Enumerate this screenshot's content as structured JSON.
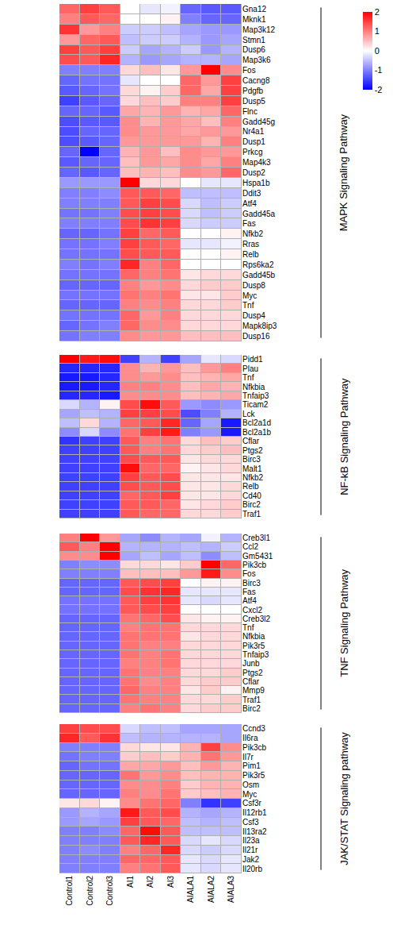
{
  "chart_data": [
    {
      "type": "heatmap",
      "title": "MAPK Signaling Pathway",
      "tick_labels": "y",
      "colorbar": {
        "range": [
          -2,
          2
        ],
        "ticks": [
          -2,
          -1,
          0,
          1,
          2
        ]
      },
      "x": [
        "Control1",
        "Control2",
        "Control3",
        "AI1",
        "AI2",
        "AI3",
        "AIALA1",
        "AIALA2",
        "AIALA3"
      ],
      "y": [
        "Gna12",
        "Mknk1",
        "Map3k12",
        "Stmn1",
        "Dusp6",
        "Map3k6",
        "Fos",
        "Cacng8",
        "Pdgfb",
        "Dusp5",
        "Flnc",
        "Gadd45g",
        "Nr4a1",
        "Dusp1",
        "Prkcg",
        "Map4k3",
        "Dusp2",
        "Hspa1b",
        "Ddit3",
        "Atf4",
        "Gadd45a",
        "Fas",
        "Nfkb2",
        "Rras",
        "Relb",
        "Rps6ka2",
        "Gadd45b",
        "Dusp8",
        "Myc",
        "Tnf",
        "Dusp4",
        "Mapk8ip3",
        "Dusp16"
      ],
      "z": [
        [
          1.2,
          1.5,
          1.3,
          0,
          -0.2,
          -0.1,
          -1.2,
          -1.3,
          -1.3
        ],
        [
          1,
          1.3,
          1.2,
          0,
          0,
          0.1,
          -1,
          -1.2,
          -1.2
        ],
        [
          1.6,
          0.8,
          1,
          -0.4,
          -0.4,
          -0.5,
          -0.7,
          -0.8,
          -0.8
        ],
        [
          0.8,
          1.2,
          1.3,
          -0.5,
          -0.4,
          -0.4,
          -0.6,
          -0.8,
          -0.7
        ],
        [
          1.5,
          1.3,
          1.5,
          -0.4,
          -0.7,
          -0.6,
          -0.4,
          -0.8,
          -0.6
        ],
        [
          1.4,
          1.3,
          1.7,
          -0.6,
          -0.8,
          -0.7,
          -0.6,
          -0.6,
          -0.7
        ],
        [
          -1,
          -1,
          -1,
          0.3,
          0.5,
          0.2,
          0.8,
          2,
          0.9
        ],
        [
          -1.2,
          -1.1,
          -1.1,
          -0.2,
          0,
          0,
          1.2,
          0.8,
          1.5
        ],
        [
          -1.3,
          -1.2,
          -1.1,
          0.3,
          0.1,
          0.4,
          1.2,
          0.7,
          1.5
        ],
        [
          -1.5,
          -1.3,
          -1.2,
          0.3,
          0.5,
          0.4,
          1,
          1,
          1.5
        ],
        [
          -1.2,
          -1.2,
          -1.3,
          0.7,
          0.6,
          0.8,
          0.6,
          0.7,
          1.2
        ],
        [
          -1.4,
          -1.3,
          -1.3,
          0.9,
          0.6,
          0.8,
          0.7,
          0.5,
          1
        ],
        [
          -1.4,
          -1.2,
          -1.2,
          0.9,
          0.8,
          0.8,
          0.7,
          0.8,
          0.8
        ],
        [
          -1.4,
          -1.3,
          -1.2,
          0.8,
          0.8,
          0.8,
          0.8,
          0.6,
          1
        ],
        [
          -1.2,
          -2,
          -1.2,
          0.6,
          0.8,
          0.5,
          0.9,
          0.8,
          0.8
        ],
        [
          -1.3,
          -1.2,
          -1.2,
          0.5,
          0.8,
          0.7,
          0.9,
          0.7,
          1
        ],
        [
          -1.2,
          -1.3,
          -1.2,
          0.5,
          0.6,
          0.5,
          0.9,
          0.8,
          1.2
        ],
        [
          -0.8,
          -0.8,
          -0.8,
          2,
          0.3,
          0.3,
          0,
          -0.2,
          -0.2
        ],
        [
          -1,
          -1,
          -0.9,
          1.3,
          1.3,
          1.2,
          -0.5,
          -0.5,
          -0.5
        ],
        [
          -1,
          -1,
          -1,
          1.3,
          1.5,
          1.4,
          -0.3,
          -0.5,
          -0.4
        ],
        [
          -1.1,
          -1.1,
          -1,
          1.4,
          1.5,
          1.4,
          -0.3,
          -0.5,
          -0.4
        ],
        [
          -1,
          -1,
          -1,
          1.4,
          1.6,
          1.5,
          -0.3,
          -0.4,
          -0.4
        ],
        [
          -1.2,
          -1.2,
          -1.1,
          1.5,
          1.2,
          1.3,
          0,
          0,
          0.1
        ],
        [
          -1.1,
          -1.1,
          -1,
          1.5,
          1.3,
          1.2,
          -0.2,
          -0.2,
          -0.1
        ],
        [
          -1.1,
          -1.1,
          -1.1,
          1.4,
          1.3,
          1.3,
          0,
          0,
          0.1
        ],
        [
          -1,
          -1.1,
          -1,
          1.7,
          1,
          1.2,
          0,
          0,
          0
        ],
        [
          -1.1,
          -1.1,
          -1.1,
          1.2,
          1,
          1.1,
          0.2,
          0.3,
          0.3
        ],
        [
          -1.2,
          -1.2,
          -1.2,
          1,
          0.8,
          0.9,
          0.3,
          0.4,
          0.4
        ],
        [
          -1.1,
          -1.1,
          -1.1,
          1.1,
          1,
          1.1,
          0.2,
          0.2,
          0.4
        ],
        [
          -1.2,
          -1.2,
          -1.2,
          1,
          0.9,
          1,
          0.3,
          0.3,
          0.4
        ],
        [
          -1.1,
          -1.1,
          -1.1,
          1.2,
          0.8,
          1,
          0.3,
          0.3,
          0.3
        ],
        [
          -1.2,
          -1.1,
          -1,
          1.2,
          0.9,
          0.9,
          0.3,
          0.3,
          0.3
        ],
        [
          -1.1,
          -1,
          -1,
          0.9,
          0.8,
          0.8,
          0.5,
          0.5,
          0.5
        ]
      ]
    },
    {
      "type": "heatmap",
      "title": "NF-kB Signaling Pathway",
      "tick_labels": "y",
      "x": [
        "Control1",
        "Control2",
        "Control3",
        "AI1",
        "AI2",
        "AI3",
        "AIALA1",
        "AIALA2",
        "AIALA3"
      ],
      "y": [
        "Pidd1",
        "Plau",
        "Tnf",
        "Nfkbia",
        "Tnfaip3",
        "Ticam2",
        "Lck",
        "Bcl2a1d",
        "Bcl2a1b",
        "Cflar",
        "Ptgs2",
        "Birc3",
        "Malt1",
        "Nfkb2",
        "Relb",
        "Cd40",
        "Birc2",
        "Traf1"
      ],
      "z": [
        [
          2,
          1.8,
          1.9,
          -1.5,
          -0.6,
          -1.5,
          -0.7,
          -0.2,
          -0.3
        ],
        [
          -1.7,
          -1.7,
          -1.7,
          0.9,
          0.6,
          0.8,
          0.5,
          0.8,
          1
        ],
        [
          -1.8,
          -1.8,
          -1.7,
          0.9,
          0.8,
          0.9,
          0.5,
          0.6,
          0.7
        ],
        [
          -1.8,
          -1.8,
          -1.7,
          1,
          1,
          0.9,
          0.5,
          0.7,
          0.6
        ],
        [
          -1.7,
          -1.7,
          -1.8,
          0.9,
          0.9,
          0.9,
          0.5,
          0.6,
          0.7
        ],
        [
          -0.3,
          -0.6,
          0.1,
          1.4,
          1.9,
          1.3,
          -0.8,
          -0.9,
          -0.8
        ],
        [
          -0.7,
          -0.5,
          -0.6,
          1.5,
          1.5,
          1.4,
          -1.4,
          -1,
          -0.6
        ],
        [
          -0.5,
          0.3,
          -0.6,
          1.2,
          1.3,
          1.7,
          -1.2,
          -0.7,
          -1.8
        ],
        [
          -0.9,
          -0.3,
          -0.9,
          1.1,
          1.5,
          1.8,
          -1,
          -0.8,
          -1.8
        ],
        [
          -1.6,
          -1.5,
          -1.5,
          1.3,
          1,
          1.1,
          0.3,
          0.5,
          0.4
        ],
        [
          -1.5,
          -1.5,
          -1.5,
          1.3,
          1,
          1.1,
          0.3,
          0.4,
          0.5
        ],
        [
          -1.5,
          -1.5,
          -1.5,
          1.4,
          1.3,
          1.3,
          0.2,
          0.3,
          0.3
        ],
        [
          -1.5,
          -1.5,
          -1.5,
          1.9,
          1.2,
          1.2,
          0.1,
          0.2,
          0.3
        ],
        [
          -1.5,
          -1.5,
          -1.5,
          1.5,
          1.3,
          1.4,
          0.2,
          0.2,
          0.2
        ],
        [
          -1.5,
          -1.5,
          -1.5,
          1.4,
          1.3,
          1.4,
          0.2,
          0.2,
          0.3
        ],
        [
          -1.5,
          -1.5,
          -1.5,
          1.2,
          1.3,
          1.5,
          0.2,
          0.2,
          0.3
        ],
        [
          -1.5,
          -1.5,
          -1.5,
          1.3,
          1.3,
          1.2,
          0.2,
          0.3,
          0.4
        ],
        [
          -1.5,
          -1.5,
          -1.5,
          1.3,
          1.2,
          1.2,
          0.3,
          0.3,
          0.4
        ]
      ]
    },
    {
      "type": "heatmap",
      "title": "TNF Signaling Pathway",
      "tick_labels": "y",
      "x": [
        "Control1",
        "Control2",
        "Control3",
        "AI1",
        "AI2",
        "AI3",
        "AIALA1",
        "AIALA2",
        "AIALA3"
      ],
      "y": [
        "Creb3l1",
        "Ccl2",
        "Gm5431",
        "Pik3cb",
        "Fos",
        "Birc3",
        "Fas",
        "Atf4",
        "Cxcl2",
        "Creb3l2",
        "Tnf",
        "Nfkbia",
        "Pik3r5",
        "Tnfaip3",
        "Junb",
        "Ptgs2",
        "Cflar",
        "Mmp9",
        "Traf1",
        "Birc2"
      ],
      "z": [
        [
          1,
          2,
          0.8,
          -0.7,
          -0.9,
          -0.6,
          -0.7,
          -0.1,
          -0.6
        ],
        [
          1.3,
          1,
          2,
          -0.6,
          -0.6,
          -0.6,
          -0.5,
          -0.6,
          -0.4
        ],
        [
          0.9,
          0.9,
          2,
          -0.7,
          -0.5,
          -0.7,
          -0.5,
          -0.9,
          -0.5
        ],
        [
          -1,
          -0.9,
          -0.9,
          0.3,
          0.3,
          0.2,
          0.4,
          2,
          1.2
        ],
        [
          -1,
          -1,
          -1,
          0.5,
          0.5,
          0.5,
          0.8,
          1.8,
          0.9
        ],
        [
          -1.2,
          -1.2,
          -1.2,
          1.3,
          1.4,
          1.5,
          0,
          0.1,
          0.1
        ],
        [
          -1.2,
          -1.2,
          -1.2,
          1.4,
          1.6,
          1.7,
          -0.2,
          -0.2,
          -0.2
        ],
        [
          -1.1,
          -1.1,
          -1.1,
          1.3,
          1.5,
          1.6,
          -0.2,
          -0.3,
          -0.2
        ],
        [
          -1.1,
          -1.1,
          -1.1,
          1.3,
          1.4,
          1.5,
          0,
          0,
          0
        ],
        [
          -1.2,
          -1.2,
          -1.2,
          1.1,
          1.2,
          1.4,
          0.2,
          0.1,
          0.1
        ],
        [
          -1.2,
          -1.2,
          -1.2,
          1,
          1.1,
          1.1,
          0.3,
          0.3,
          0.3
        ],
        [
          -1.2,
          -1.2,
          -1.2,
          1.1,
          1.1,
          1.1,
          0.2,
          0.3,
          0.3
        ],
        [
          -1.2,
          -1.2,
          -1.2,
          1.1,
          1,
          1,
          0.3,
          0.3,
          0.3
        ],
        [
          -1.2,
          -1.2,
          -1.2,
          1.1,
          1,
          1.1,
          0.3,
          0.3,
          0.3
        ],
        [
          -1.2,
          -1.2,
          -1.2,
          1,
          1,
          1.1,
          0.3,
          0.3,
          0.3
        ],
        [
          -1.2,
          -1.2,
          -1.2,
          1.1,
          1,
          1,
          0.3,
          0.3,
          0.4
        ],
        [
          -1.2,
          -1.2,
          -1.2,
          1.1,
          0.9,
          1,
          0.3,
          0.4,
          0.4
        ],
        [
          -1.2,
          -1.2,
          -1.2,
          1.2,
          1,
          1,
          0.2,
          0.4,
          0.1
        ],
        [
          -1.2,
          -1.2,
          -1.2,
          1.1,
          1,
          1,
          0.3,
          0.3,
          0.4
        ],
        [
          -1.2,
          -1.2,
          -1.2,
          1,
          1.1,
          1,
          0.3,
          0.4,
          0.4
        ]
      ]
    },
    {
      "type": "heatmap",
      "title": "JAK/STAT Signaling pathway",
      "x": [
        "Control1",
        "Control2",
        "Control3",
        "AI1",
        "AI2",
        "AI3",
        "AIALA1",
        "AIALA2",
        "AIALA3"
      ],
      "y": [
        "Ccnd3",
        "Il6ra",
        "Pik3cb",
        "Il7r",
        "Pim1",
        "Pik3r5",
        "Osm",
        "Myc",
        "Csf3r",
        "Il12rb1",
        "Csf3",
        "Il13ra2",
        "Il23a",
        "Il21r",
        "Jak2",
        "Il20rb"
      ],
      "z": [
        [
          1.5,
          1.4,
          1.4,
          -0.3,
          -0.5,
          -0.5,
          -0.7,
          -0.7,
          -0.7
        ],
        [
          1.7,
          1.3,
          1.6,
          -0.5,
          -0.6,
          -0.6,
          -0.6,
          -0.6,
          -0.7
        ],
        [
          -1,
          -1,
          -1,
          0.3,
          0.2,
          0.2,
          0.6,
          1.5,
          0.9
        ],
        [
          -1.1,
          -1,
          -1,
          0.4,
          0.5,
          0.4,
          0.6,
          1.1,
          0.8
        ],
        [
          -1.2,
          -1.1,
          -1.1,
          0.7,
          0.7,
          0.8,
          0.5,
          0.8,
          0.6
        ],
        [
          -1.2,
          -1.2,
          -1.2,
          1.1,
          0.8,
          0.9,
          0.5,
          0.6,
          0.6
        ],
        [
          -1.2,
          -1.2,
          -1.2,
          0.9,
          0.9,
          1,
          0.4,
          0.6,
          0.6
        ],
        [
          -1.2,
          -1.2,
          -1.2,
          1,
          0.9,
          1.1,
          0.4,
          0.5,
          0.6
        ],
        [
          0.2,
          0.3,
          0.1,
          0.9,
          1.1,
          1.2,
          -1,
          -1.6,
          -1.5
        ],
        [
          -0.8,
          -0.6,
          -0.7,
          1.8,
          1.3,
          1.4,
          -0.6,
          -0.7,
          -0.6
        ],
        [
          -0.8,
          -0.7,
          -0.8,
          1.5,
          1.3,
          1.2,
          -0.5,
          -0.6,
          -0.5
        ],
        [
          -1,
          -1,
          -0.9,
          1.2,
          1.9,
          1.3,
          -0.5,
          -0.5,
          -0.5
        ],
        [
          -1,
          -1,
          -1,
          1.3,
          1.7,
          1.3,
          -0.3,
          -0.2,
          -0.3
        ],
        [
          -1,
          -0.9,
          -1,
          1,
          1.2,
          1.7,
          -0.3,
          -0.4,
          -0.3
        ],
        [
          -1,
          -1,
          -1,
          1.2,
          1.2,
          1.3,
          -0.2,
          -0.3,
          -0.2
        ],
        [
          -1,
          -1,
          -1,
          1,
          1.1,
          1.3,
          -0.2,
          -0.3,
          -0.2
        ]
      ]
    }
  ]
}
